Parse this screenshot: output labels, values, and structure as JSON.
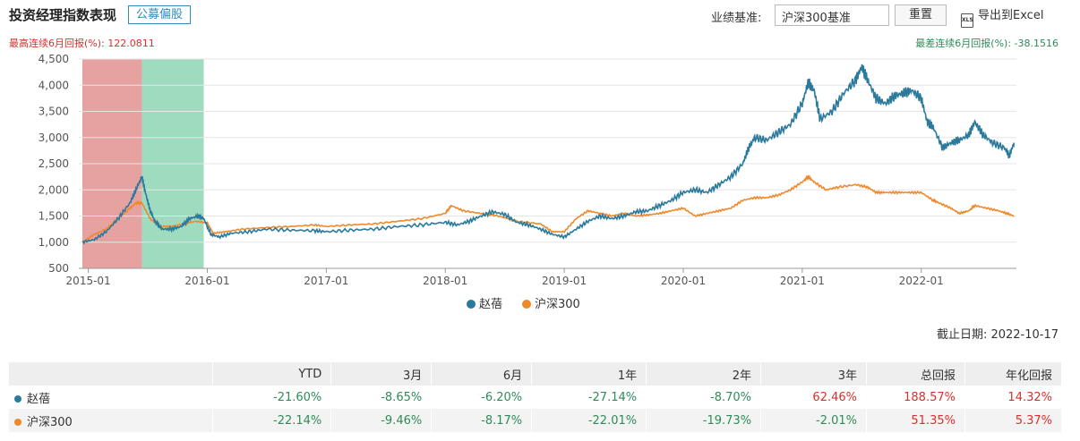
{
  "header": {
    "title": "投资经理指数表现",
    "tag": "公募偏股",
    "benchmark_label": "业绩基准:",
    "benchmark_value": "沪深300基准",
    "reset_label": "重置",
    "excel_label": "导出到Excel",
    "excel_icon": "excel-file-icon",
    "excel_icon_text": "XLS"
  },
  "stats": {
    "best_label": "最高连续6月回报(%):",
    "best_value": "122.0811",
    "worst_label": "最差连续6月回报(%):",
    "worst_value": "-38.1516"
  },
  "cutoff": {
    "label": "截止日期:",
    "value": "2022-10-17"
  },
  "colors": {
    "manager": "#2b7a9c",
    "benchmark": "#f0892a",
    "best_band": "#d9706e",
    "worst_band": "#6cc79b",
    "positive": "#d9302c",
    "negative": "#2e8b57"
  },
  "chart_data": {
    "type": "line",
    "y_ticks": [
      "500",
      "1,000",
      "1,500",
      "2,000",
      "2,500",
      "3,000",
      "3,500",
      "4,000",
      "4,500"
    ],
    "ylim": [
      500,
      4500
    ],
    "xlim": [
      2014.92,
      2022.8
    ],
    "x_ticks": [
      {
        "pos": 2015.0,
        "label": "2015-01"
      },
      {
        "pos": 2016.0,
        "label": "2016-01"
      },
      {
        "pos": 2017.0,
        "label": "2017-01"
      },
      {
        "pos": 2018.0,
        "label": "2018-01"
      },
      {
        "pos": 2019.0,
        "label": "2019-01"
      },
      {
        "pos": 2020.0,
        "label": "2020-01"
      },
      {
        "pos": 2021.0,
        "label": "2021-01"
      },
      {
        "pos": 2022.0,
        "label": "2022-01"
      }
    ],
    "bands": [
      {
        "name": "best-6m",
        "from": 2014.95,
        "to": 2015.45
      },
      {
        "name": "worst-6m",
        "from": 2015.45,
        "to": 2015.97
      }
    ],
    "series": [
      {
        "name": "赵蓓",
        "points": [
          [
            2014.95,
            1000
          ],
          [
            2015.05,
            1050
          ],
          [
            2015.15,
            1200
          ],
          [
            2015.25,
            1450
          ],
          [
            2015.35,
            1750
          ],
          [
            2015.4,
            2000
          ],
          [
            2015.45,
            2250
          ],
          [
            2015.48,
            1950
          ],
          [
            2015.52,
            1600
          ],
          [
            2015.56,
            1400
          ],
          [
            2015.62,
            1250
          ],
          [
            2015.7,
            1250
          ],
          [
            2015.78,
            1300
          ],
          [
            2015.85,
            1450
          ],
          [
            2015.92,
            1500
          ],
          [
            2015.97,
            1450
          ],
          [
            2016.03,
            1150
          ],
          [
            2016.1,
            1100
          ],
          [
            2016.2,
            1170
          ],
          [
            2016.35,
            1200
          ],
          [
            2016.5,
            1250
          ],
          [
            2016.7,
            1230
          ],
          [
            2016.9,
            1220
          ],
          [
            2017.0,
            1200
          ],
          [
            2017.2,
            1230
          ],
          [
            2017.4,
            1250
          ],
          [
            2017.6,
            1300
          ],
          [
            2017.8,
            1330
          ],
          [
            2018.0,
            1380
          ],
          [
            2018.1,
            1330
          ],
          [
            2018.2,
            1400
          ],
          [
            2018.3,
            1500
          ],
          [
            2018.4,
            1580
          ],
          [
            2018.5,
            1530
          ],
          [
            2018.6,
            1380
          ],
          [
            2018.7,
            1330
          ],
          [
            2018.8,
            1250
          ],
          [
            2018.9,
            1150
          ],
          [
            2019.0,
            1100
          ],
          [
            2019.1,
            1250
          ],
          [
            2019.2,
            1400
          ],
          [
            2019.3,
            1500
          ],
          [
            2019.4,
            1450
          ],
          [
            2019.5,
            1500
          ],
          [
            2019.6,
            1580
          ],
          [
            2019.7,
            1600
          ],
          [
            2019.8,
            1700
          ],
          [
            2019.9,
            1800
          ],
          [
            2020.0,
            1950
          ],
          [
            2020.1,
            2000
          ],
          [
            2020.2,
            1950
          ],
          [
            2020.3,
            2100
          ],
          [
            2020.4,
            2250
          ],
          [
            2020.5,
            2500
          ],
          [
            2020.55,
            2800
          ],
          [
            2020.6,
            3000
          ],
          [
            2020.7,
            2950
          ],
          [
            2020.8,
            3100
          ],
          [
            2020.9,
            3250
          ],
          [
            2021.0,
            3650
          ],
          [
            2021.05,
            4050
          ],
          [
            2021.1,
            3900
          ],
          [
            2021.15,
            3350
          ],
          [
            2021.25,
            3500
          ],
          [
            2021.35,
            3850
          ],
          [
            2021.45,
            4100
          ],
          [
            2021.5,
            4350
          ],
          [
            2021.55,
            4100
          ],
          [
            2021.62,
            3750
          ],
          [
            2021.7,
            3650
          ],
          [
            2021.78,
            3800
          ],
          [
            2021.85,
            3850
          ],
          [
            2021.92,
            3900
          ],
          [
            2022.0,
            3750
          ],
          [
            2022.05,
            3300
          ],
          [
            2022.1,
            3200
          ],
          [
            2022.18,
            2800
          ],
          [
            2022.25,
            2900
          ],
          [
            2022.32,
            2950
          ],
          [
            2022.4,
            3050
          ],
          [
            2022.45,
            3300
          ],
          [
            2022.52,
            3050
          ],
          [
            2022.6,
            2900
          ],
          [
            2022.7,
            2800
          ],
          [
            2022.74,
            2650
          ],
          [
            2022.78,
            2900
          ]
        ]
      },
      {
        "name": "沪深300",
        "points": [
          [
            2014.95,
            1000
          ],
          [
            2015.05,
            1150
          ],
          [
            2015.15,
            1250
          ],
          [
            2015.25,
            1450
          ],
          [
            2015.35,
            1650
          ],
          [
            2015.4,
            1750
          ],
          [
            2015.45,
            1750
          ],
          [
            2015.52,
            1450
          ],
          [
            2015.6,
            1300
          ],
          [
            2015.7,
            1300
          ],
          [
            2015.8,
            1350
          ],
          [
            2015.9,
            1400
          ],
          [
            2016.0,
            1370
          ],
          [
            2016.05,
            1170
          ],
          [
            2016.15,
            1200
          ],
          [
            2016.3,
            1250
          ],
          [
            2016.5,
            1280
          ],
          [
            2016.7,
            1300
          ],
          [
            2016.9,
            1330
          ],
          [
            2017.0,
            1300
          ],
          [
            2017.2,
            1330
          ],
          [
            2017.4,
            1350
          ],
          [
            2017.6,
            1400
          ],
          [
            2017.8,
            1450
          ],
          [
            2018.0,
            1550
          ],
          [
            2018.05,
            1700
          ],
          [
            2018.15,
            1600
          ],
          [
            2018.3,
            1550
          ],
          [
            2018.45,
            1500
          ],
          [
            2018.6,
            1400
          ],
          [
            2018.8,
            1350
          ],
          [
            2018.9,
            1200
          ],
          [
            2019.0,
            1200
          ],
          [
            2019.1,
            1450
          ],
          [
            2019.2,
            1600
          ],
          [
            2019.3,
            1550
          ],
          [
            2019.4,
            1500
          ],
          [
            2019.5,
            1550
          ],
          [
            2019.6,
            1500
          ],
          [
            2019.7,
            1520
          ],
          [
            2019.8,
            1550
          ],
          [
            2019.9,
            1600
          ],
          [
            2020.0,
            1650
          ],
          [
            2020.1,
            1500
          ],
          [
            2020.2,
            1550
          ],
          [
            2020.3,
            1600
          ],
          [
            2020.4,
            1650
          ],
          [
            2020.5,
            1800
          ],
          [
            2020.6,
            1850
          ],
          [
            2020.7,
            1850
          ],
          [
            2020.8,
            1900
          ],
          [
            2020.9,
            2000
          ],
          [
            2021.0,
            2150
          ],
          [
            2021.05,
            2250
          ],
          [
            2021.1,
            2150
          ],
          [
            2021.2,
            2000
          ],
          [
            2021.3,
            2050
          ],
          [
            2021.45,
            2100
          ],
          [
            2021.55,
            2050
          ],
          [
            2021.62,
            1950
          ],
          [
            2021.7,
            1950
          ],
          [
            2021.8,
            1950
          ],
          [
            2021.9,
            1950
          ],
          [
            2022.0,
            1950
          ],
          [
            2022.1,
            1800
          ],
          [
            2022.15,
            1750
          ],
          [
            2022.25,
            1650
          ],
          [
            2022.32,
            1550
          ],
          [
            2022.4,
            1600
          ],
          [
            2022.45,
            1700
          ],
          [
            2022.55,
            1650
          ],
          [
            2022.65,
            1600
          ],
          [
            2022.72,
            1550
          ],
          [
            2022.78,
            1500
          ]
        ]
      }
    ]
  },
  "table": {
    "headers": [
      "",
      "YTD",
      "3月",
      "6月",
      "1年",
      "2年",
      "3年",
      "总回报",
      "年化回报"
    ],
    "rows": [
      {
        "name": "赵蓓",
        "values": [
          "-21.60%",
          "-8.65%",
          "-6.20%",
          "-27.14%",
          "-8.70%",
          "62.46%",
          "188.57%",
          "14.32%"
        ]
      },
      {
        "name": "沪深300",
        "values": [
          "-22.14%",
          "-9.46%",
          "-8.17%",
          "-22.01%",
          "-19.73%",
          "-2.01%",
          "51.35%",
          "5.37%"
        ]
      }
    ]
  }
}
